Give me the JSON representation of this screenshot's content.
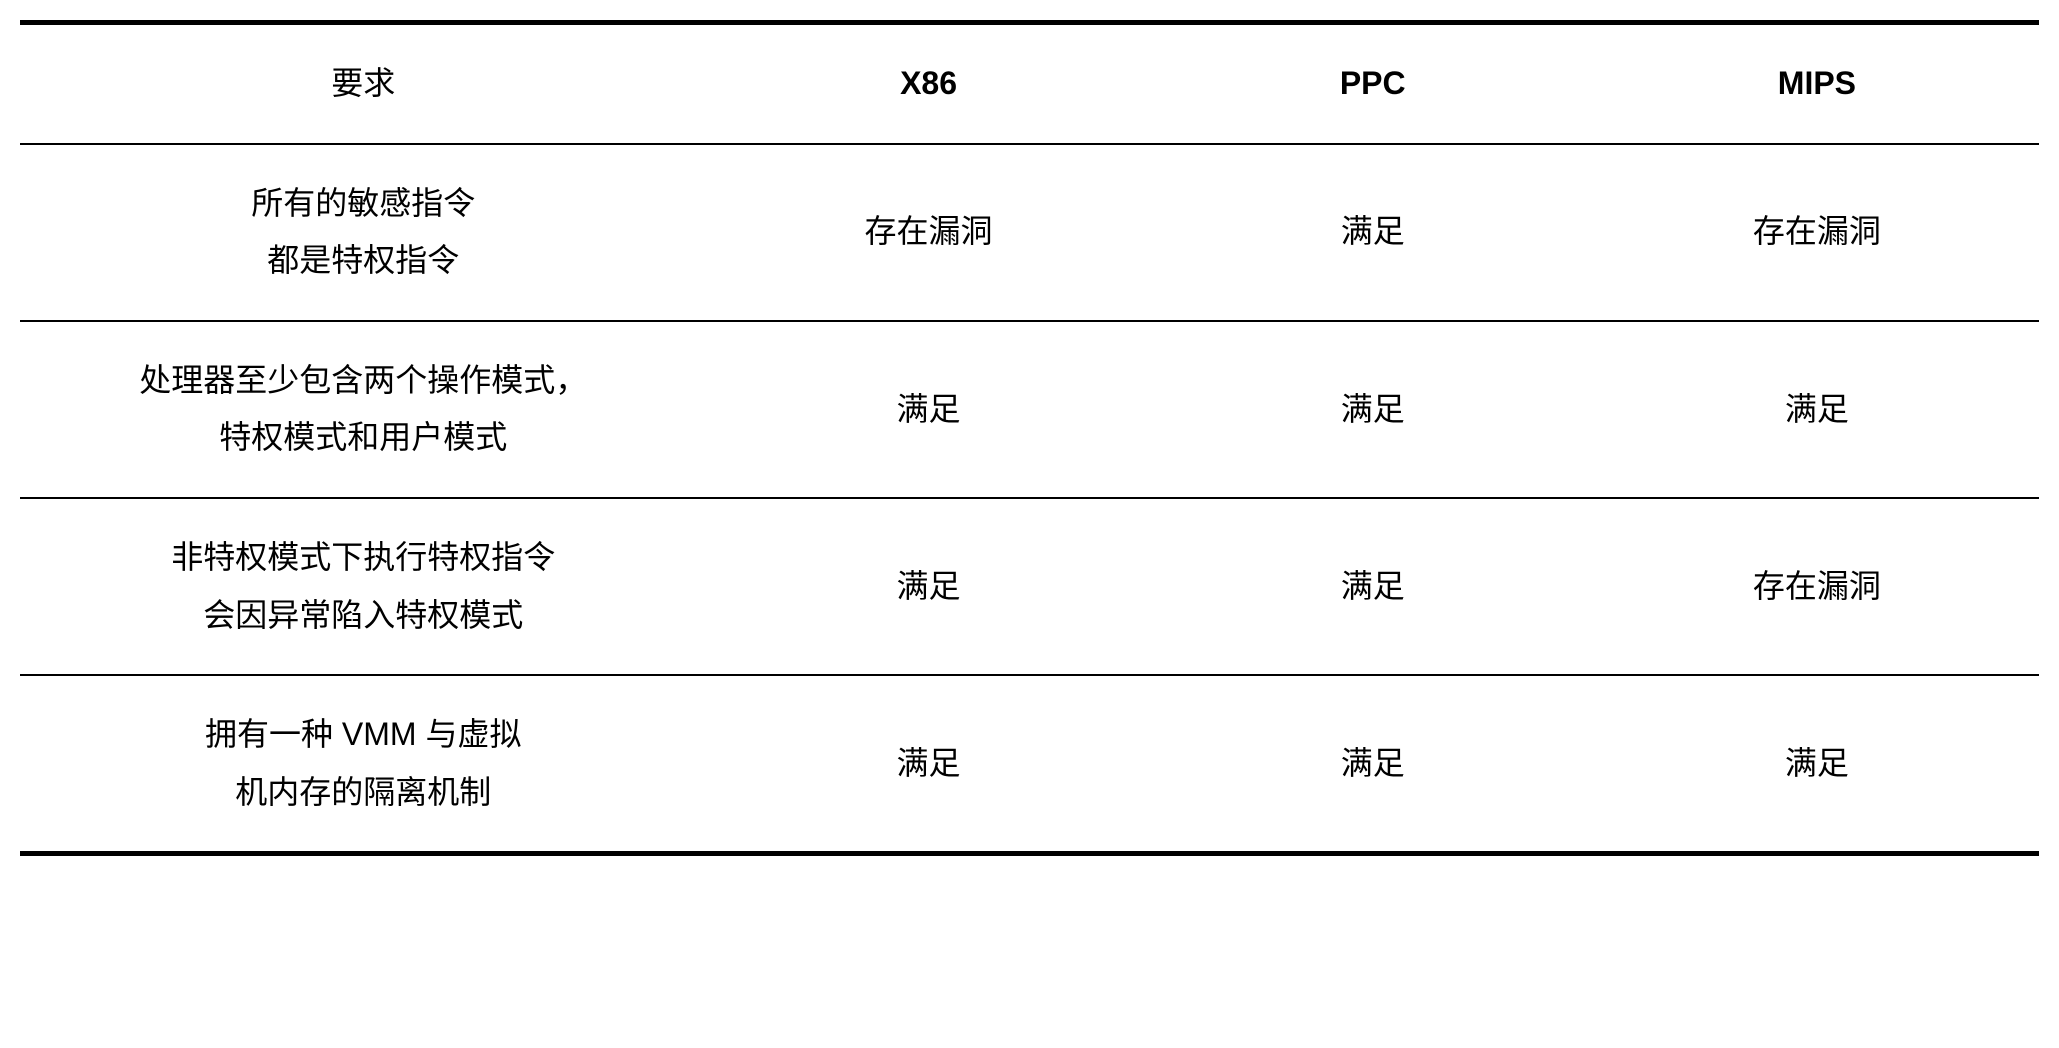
{
  "table": {
    "type": "table",
    "background_color": "#ffffff",
    "text_color": "#000000",
    "border_color": "#000000",
    "top_border_width": 5,
    "bottom_border_width": 5,
    "row_border_width": 2,
    "font_size": 32,
    "line_height": 1.8,
    "columns": [
      {
        "key": "requirement",
        "label": "要求",
        "width_pct": 34,
        "bold": false
      },
      {
        "key": "x86",
        "label": "X86",
        "width_pct": 22,
        "bold": true
      },
      {
        "key": "ppc",
        "label": "PPC",
        "width_pct": 22,
        "bold": true
      },
      {
        "key": "mips",
        "label": "MIPS",
        "width_pct": 22,
        "bold": true
      }
    ],
    "rows": [
      {
        "requirement": "所有的敏感指令\n都是特权指令",
        "x86": "存在漏洞",
        "ppc": "满足",
        "mips": "存在漏洞"
      },
      {
        "requirement": "处理器至少包含两个操作模式，\n特权模式和用户模式",
        "x86": "满足",
        "ppc": "满足",
        "mips": "满足"
      },
      {
        "requirement": "非特权模式下执行特权指令\n会因异常陷入特权模式",
        "x86": "满足",
        "ppc": "满足",
        "mips": "存在漏洞"
      },
      {
        "requirement": "拥有一种 VMM 与虚拟\n机内存的隔离机制",
        "x86": "满足",
        "ppc": "满足",
        "mips": "满足"
      }
    ]
  }
}
